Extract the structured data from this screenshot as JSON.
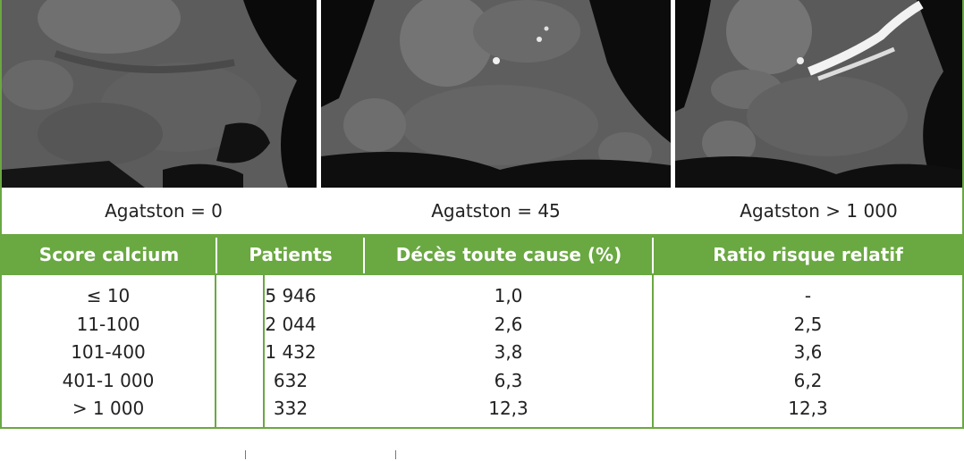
{
  "captions": [
    "Agatston = 0",
    "Agatston = 45",
    "Agatston > 1 000"
  ],
  "table": {
    "headers": [
      "Score calcium",
      "Patients",
      "Décès toute cause (%)",
      "Ratio risque relatif"
    ],
    "rows": [
      [
        "≤ 10",
        "5 946",
        "1,0",
        "-"
      ],
      [
        "11-100",
        "2 044",
        "2,6",
        "2,5"
      ],
      [
        "101-400",
        "1 432",
        "3,8",
        "3,6"
      ],
      [
        "401-1 000",
        "632",
        "6,3",
        "6,2"
      ],
      [
        "> 1 000",
        "332",
        "12,3",
        "12,3"
      ]
    ]
  },
  "colors": {
    "accent": "#6aa842",
    "header_text": "#ffffff",
    "body_text": "#222222"
  }
}
